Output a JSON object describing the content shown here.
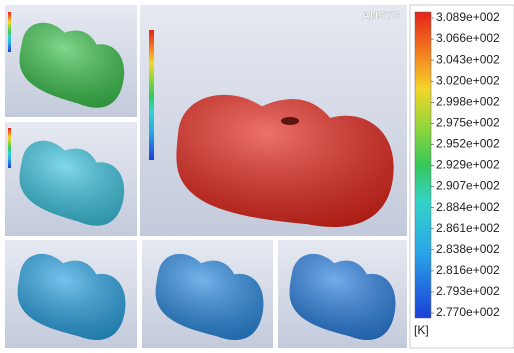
{
  "logo": "ANSYS",
  "legend": {
    "labels": [
      "3.089e+002",
      "3.066e+002",
      "3.043e+002",
      "3.020e+002",
      "2.998e+002",
      "2.975e+002",
      "2.952e+002",
      "2.929e+002",
      "2.907e+002",
      "2.884e+002",
      "2.861e+002",
      "2.838e+002",
      "2.816e+002",
      "2.793e+002",
      "2.770e+002"
    ],
    "unit": "[K]"
  }
}
